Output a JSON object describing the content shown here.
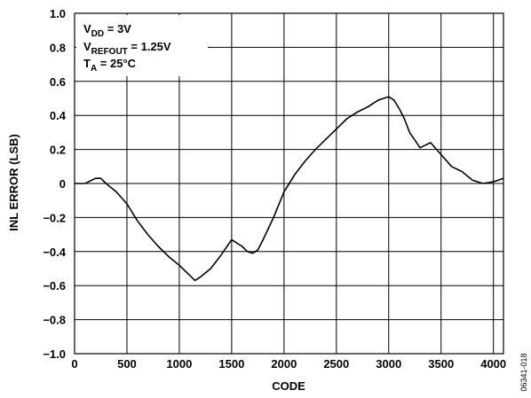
{
  "chart_data": {
    "type": "line",
    "xlabel": "CODE",
    "ylabel": "INL ERROR (LSB)",
    "xlim": [
      0,
      4096
    ],
    "ylim": [
      -1.0,
      1.0
    ],
    "x_ticks": [
      0,
      500,
      1000,
      1500,
      2000,
      2500,
      3000,
      3500,
      4000
    ],
    "x_tick_labels": [
      "0",
      "500",
      "1000",
      "1500",
      "2000",
      "2500",
      "3000",
      "3500",
      "4000"
    ],
    "y_ticks": [
      -1.0,
      -0.8,
      -0.6,
      -0.4,
      -0.2,
      0,
      0.2,
      0.4,
      0.6,
      0.8,
      1.0
    ],
    "y_tick_labels": [
      "−1.0",
      "−0.8",
      "−0.6",
      "−0.4",
      "−0.2",
      "0",
      "0.2",
      "0.4",
      "0.6",
      "0.8",
      "1.0"
    ],
    "grid": true,
    "line_color": "#000000",
    "annotations": {
      "vdd": {
        "main": "V",
        "sub": "DD",
        "rest": " = 3V"
      },
      "vref": {
        "main": "V",
        "sub": "REFOUT",
        "rest": " = 1.25V"
      },
      "ta": {
        "main": "T",
        "sub": "A",
        "rest": " = 25°C"
      }
    },
    "figure_id": "06341-018",
    "series": [
      {
        "x": [
          0,
          100,
          200,
          250,
          300,
          400,
          500,
          600,
          700,
          800,
          900,
          1000,
          1100,
          1150,
          1200,
          1300,
          1400,
          1500,
          1600,
          1650,
          1700,
          1750,
          1800,
          1900,
          2000,
          2100,
          2200,
          2300,
          2400,
          2500,
          2600,
          2700,
          2800,
          2900,
          2950,
          3000,
          3050,
          3100,
          3150,
          3200,
          3300,
          3400,
          3500,
          3600,
          3700,
          3800,
          3900,
          4000,
          4095
        ],
        "y": [
          0.0,
          0.0,
          0.03,
          0.03,
          0.0,
          -0.05,
          -0.12,
          -0.22,
          -0.3,
          -0.37,
          -0.43,
          -0.48,
          -0.54,
          -0.57,
          -0.55,
          -0.5,
          -0.42,
          -0.33,
          -0.37,
          -0.4,
          -0.41,
          -0.39,
          -0.33,
          -0.2,
          -0.05,
          0.05,
          0.13,
          0.2,
          0.26,
          0.32,
          0.38,
          0.42,
          0.45,
          0.49,
          0.5,
          0.51,
          0.49,
          0.44,
          0.38,
          0.3,
          0.21,
          0.24,
          0.17,
          0.1,
          0.07,
          0.02,
          0.0,
          0.01,
          0.03
        ]
      }
    ]
  }
}
